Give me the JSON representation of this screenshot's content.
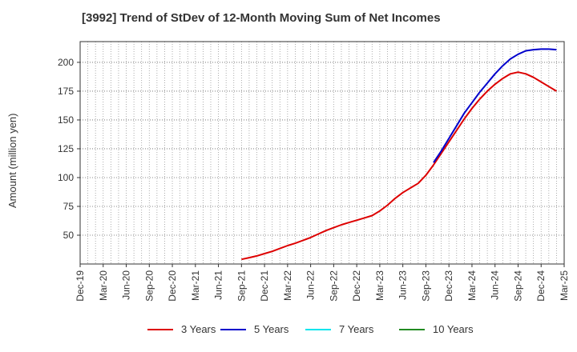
{
  "title": "[3992]  Trend of StDev of 12-Month Moving Sum of Net Incomes",
  "chart_data": {
    "type": "line",
    "title": "[3992]  Trend of StDev of 12-Month Moving Sum of Net Incomes",
    "xlabel": "",
    "ylabel": "Amount (million yen)",
    "x_tick_labels": [
      "Dec-19",
      "Mar-20",
      "Jun-20",
      "Sep-20",
      "Dec-20",
      "Mar-21",
      "Jun-21",
      "Sep-21",
      "Dec-21",
      "Mar-22",
      "Jun-22",
      "Sep-22",
      "Dec-22",
      "Mar-23",
      "Jun-23",
      "Sep-23",
      "Dec-23",
      "Mar-24",
      "Jun-24",
      "Sep-24",
      "Dec-24",
      "Mar-25"
    ],
    "y_ticks": [
      50,
      75,
      100,
      125,
      150,
      175,
      200
    ],
    "ylim": [
      25,
      218
    ],
    "xlim": [
      "2019-12",
      "2025-03"
    ],
    "grid": true,
    "legend_position": "bottom",
    "series": [
      {
        "name": "3 Years",
        "color": "#dd0000",
        "points": [
          [
            "2021-09",
            29
          ],
          [
            "2021-10",
            30.5
          ],
          [
            "2021-11",
            32
          ],
          [
            "2021-12",
            34
          ],
          [
            "2022-01",
            36
          ],
          [
            "2022-02",
            38.5
          ],
          [
            "2022-03",
            41
          ],
          [
            "2022-04",
            43
          ],
          [
            "2022-05",
            45.5
          ],
          [
            "2022-06",
            48
          ],
          [
            "2022-07",
            51
          ],
          [
            "2022-08",
            54
          ],
          [
            "2022-09",
            56.5
          ],
          [
            "2022-10",
            59
          ],
          [
            "2022-11",
            61
          ],
          [
            "2022-12",
            63
          ],
          [
            "2023-01",
            65
          ],
          [
            "2023-02",
            67
          ],
          [
            "2023-03",
            71
          ],
          [
            "2023-04",
            76
          ],
          [
            "2023-05",
            82
          ],
          [
            "2023-06",
            87
          ],
          [
            "2023-07",
            91
          ],
          [
            "2023-08",
            95
          ],
          [
            "2023-09",
            102
          ],
          [
            "2023-10",
            111
          ],
          [
            "2023-11",
            121
          ],
          [
            "2023-12",
            131
          ],
          [
            "2024-01",
            141
          ],
          [
            "2024-02",
            151
          ],
          [
            "2024-03",
            160
          ],
          [
            "2024-04",
            168
          ],
          [
            "2024-05",
            175
          ],
          [
            "2024-06",
            181
          ],
          [
            "2024-07",
            186
          ],
          [
            "2024-08",
            190
          ],
          [
            "2024-09",
            191.5
          ],
          [
            "2024-10",
            190
          ],
          [
            "2024-11",
            187
          ],
          [
            "2024-12",
            183
          ],
          [
            "2025-01",
            179
          ],
          [
            "2025-02",
            175
          ]
        ]
      },
      {
        "name": "5 Years",
        "color": "#0000cc",
        "points": [
          [
            "2023-10",
            113
          ],
          [
            "2023-11",
            123
          ],
          [
            "2023-12",
            134
          ],
          [
            "2024-01",
            145
          ],
          [
            "2024-02",
            156
          ],
          [
            "2024-03",
            165
          ],
          [
            "2024-04",
            174
          ],
          [
            "2024-05",
            182
          ],
          [
            "2024-06",
            190
          ],
          [
            "2024-07",
            197
          ],
          [
            "2024-08",
            203
          ],
          [
            "2024-09",
            207
          ],
          [
            "2024-10",
            210
          ],
          [
            "2024-11",
            211
          ],
          [
            "2024-12",
            211.5
          ],
          [
            "2025-01",
            211.5
          ],
          [
            "2025-02",
            211
          ]
        ]
      },
      {
        "name": "7 Years",
        "color": "#00e5ee",
        "points": []
      },
      {
        "name": "10 Years",
        "color": "#228b22",
        "points": []
      }
    ]
  }
}
